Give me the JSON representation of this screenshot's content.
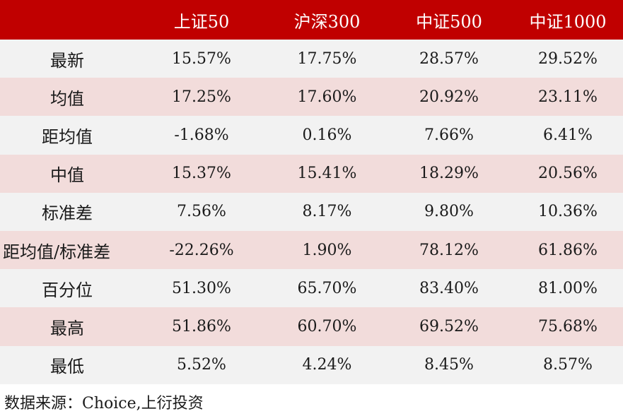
{
  "table": {
    "columns": [
      "",
      "上证50",
      "沪深300",
      "中证500",
      "中证1000"
    ],
    "rows": [
      {
        "label": "最新",
        "values": [
          "15.57%",
          "17.75%",
          "28.57%",
          "29.52%"
        ]
      },
      {
        "label": "均值",
        "values": [
          "17.25%",
          "17.60%",
          "20.92%",
          "23.11%"
        ]
      },
      {
        "label": "距均值",
        "values": [
          "-1.68%",
          "0.16%",
          "7.66%",
          "6.41%"
        ]
      },
      {
        "label": "中值",
        "values": [
          "15.37%",
          "15.41%",
          "18.29%",
          "20.56%"
        ]
      },
      {
        "label": "标准差",
        "values": [
          "7.56%",
          "8.17%",
          "9.80%",
          "10.36%"
        ]
      },
      {
        "label": "距均值/标准差",
        "values": [
          "-22.26%",
          "1.90%",
          "78.12%",
          "61.86%"
        ]
      },
      {
        "label": "百分位",
        "values": [
          "51.30%",
          "65.70%",
          "83.40%",
          "81.00%"
        ]
      },
      {
        "label": "最高",
        "values": [
          "51.86%",
          "60.70%",
          "69.52%",
          "75.68%"
        ]
      },
      {
        "label": "最低",
        "values": [
          "5.52%",
          "4.24%",
          "8.45%",
          "8.57%"
        ]
      }
    ]
  },
  "footer": {
    "source": "数据来源：Choice,上衍投资"
  },
  "colors": {
    "header_bg": "#c00000",
    "row_odd_bg": "#f2f2f2",
    "row_even_bg": "#f2dcdb"
  }
}
